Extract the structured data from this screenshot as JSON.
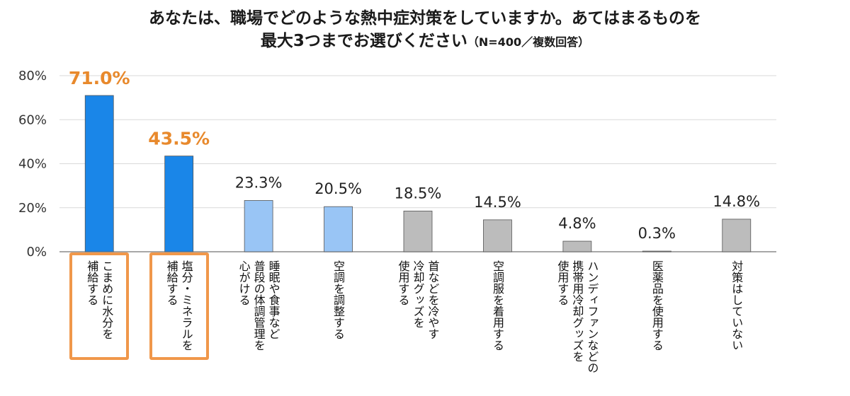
{
  "title": {
    "line1": "あなたは、職場でどのような熱中症対策をしていますか。あてはまるものを",
    "line2": "最大3つまでお選びください",
    "note": "（N=400／複数回答）"
  },
  "chart_data": {
    "type": "bar",
    "categories": [
      "こまめに水分を補給する",
      "塩分・ミネラルを補給する",
      "睡眠や食事など普段の体調管理を心がける",
      "空調を調整する",
      "首などを冷やす冷却グッズを使用する",
      "空調服を着用する",
      "ハンディファンなどの携帯用冷却グッズを使用する",
      "医薬品を使用する",
      "対策はしていない"
    ],
    "category_lines": [
      [
        "こまめに水分を",
        "補給する"
      ],
      [
        "塩分・ミネラルを",
        "補給する"
      ],
      [
        "睡眠や食事など",
        "普段の体調管理を",
        "心がける"
      ],
      [
        "空調を調整する"
      ],
      [
        "首などを冷やす",
        "冷却グッズを",
        "使用する"
      ],
      [
        "空調服を着用する"
      ],
      [
        "ハンディファンなどの",
        "携帯用冷却グッズを",
        "使用する"
      ],
      [
        "医薬品を使用する"
      ],
      [
        "対策はしていない"
      ]
    ],
    "values": [
      71.0,
      43.5,
      23.3,
      20.5,
      18.5,
      14.5,
      4.8,
      0.3,
      14.8
    ],
    "value_labels": [
      "71.0%",
      "43.5%",
      "23.3%",
      "20.5%",
      "18.5%",
      "14.5%",
      "4.8%",
      "0.3%",
      "14.8%"
    ],
    "bar_colors": [
      "#1a86e8",
      "#1a86e8",
      "#99c5f5",
      "#99c5f5",
      "#bcbcbc",
      "#bcbcbc",
      "#bcbcbc",
      "#bcbcbc",
      "#bcbcbc"
    ],
    "highlighted": [
      0,
      1
    ],
    "highlight_color": "#f0974a",
    "yticks": [
      "0%",
      "20%",
      "40%",
      "60%",
      "80%"
    ],
    "ylim": [
      0,
      80
    ],
    "grid": true
  }
}
